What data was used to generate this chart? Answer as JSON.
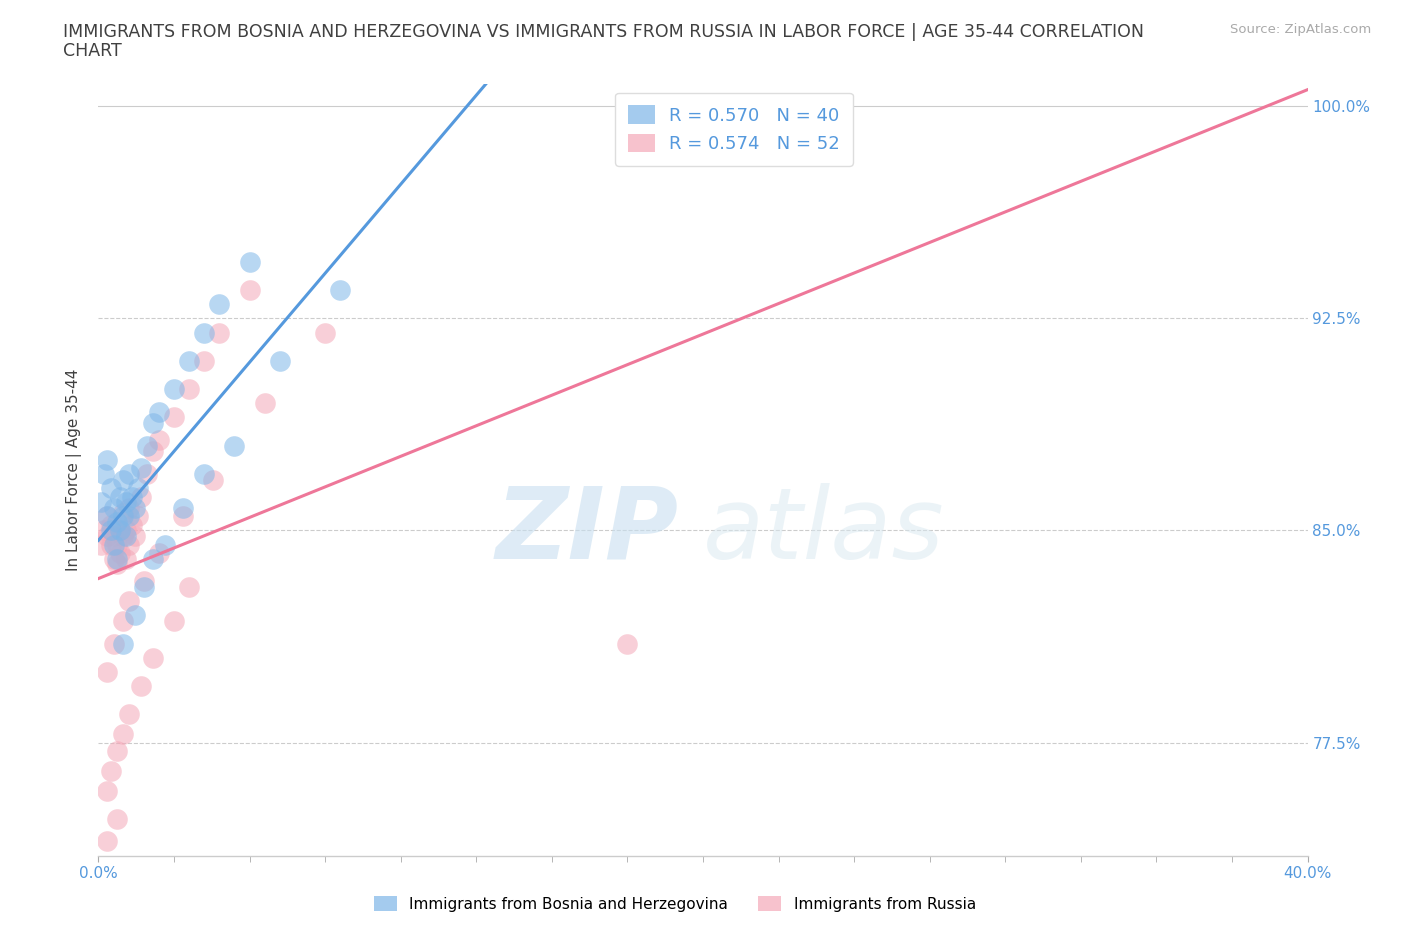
{
  "title_line1": "IMMIGRANTS FROM BOSNIA AND HERZEGOVINA VS IMMIGRANTS FROM RUSSIA IN LABOR FORCE | AGE 35-44 CORRELATION",
  "title_line2": "CHART",
  "source": "Source: ZipAtlas.com",
  "ylabel": "In Labor Force | Age 35-44",
  "legend_label_blue": "Immigrants from Bosnia and Herzegovina",
  "legend_label_pink": "Immigrants from Russia",
  "r_blue": 0.57,
  "n_blue": 40,
  "r_pink": 0.574,
  "n_pink": 52,
  "color_blue": "#7EB6E8",
  "color_pink": "#F4A8B8",
  "line_color_blue": "#5599DD",
  "line_color_pink": "#EE7799",
  "xlim": [
    0.0,
    0.4
  ],
  "ylim": [
    0.735,
    1.008
  ],
  "yticks": [
    0.775,
    0.85,
    0.925,
    1.0
  ],
  "ytick_labels": [
    "77.5%",
    "85.0%",
    "92.5%",
    "100.0%"
  ],
  "xticks_minor": [
    0.0,
    0.025,
    0.05,
    0.075,
    0.1,
    0.125,
    0.15,
    0.175,
    0.2,
    0.225,
    0.25,
    0.275,
    0.3,
    0.325,
    0.35,
    0.375,
    0.4
  ],
  "xticks_labeled": [
    0.0,
    0.4
  ],
  "xtick_labels": [
    "0.0%",
    "40.0%"
  ],
  "blue_x": [
    0.001,
    0.002,
    0.003,
    0.003,
    0.004,
    0.004,
    0.005,
    0.005,
    0.006,
    0.006,
    0.007,
    0.007,
    0.008,
    0.008,
    0.009,
    0.009,
    0.01,
    0.01,
    0.011,
    0.012,
    0.013,
    0.014,
    0.016,
    0.018,
    0.02,
    0.025,
    0.03,
    0.035,
    0.04,
    0.05,
    0.008,
    0.012,
    0.015,
    0.018,
    0.022,
    0.028,
    0.035,
    0.045,
    0.06,
    0.08
  ],
  "blue_y": [
    0.86,
    0.87,
    0.855,
    0.875,
    0.85,
    0.865,
    0.845,
    0.858,
    0.84,
    0.853,
    0.85,
    0.862,
    0.855,
    0.868,
    0.848,
    0.86,
    0.855,
    0.87,
    0.862,
    0.858,
    0.865,
    0.872,
    0.88,
    0.888,
    0.892,
    0.9,
    0.91,
    0.92,
    0.93,
    0.945,
    0.81,
    0.82,
    0.83,
    0.84,
    0.845,
    0.858,
    0.87,
    0.88,
    0.91,
    0.935
  ],
  "pink_x": [
    0.001,
    0.002,
    0.003,
    0.003,
    0.004,
    0.004,
    0.005,
    0.005,
    0.006,
    0.006,
    0.007,
    0.007,
    0.008,
    0.008,
    0.009,
    0.009,
    0.01,
    0.01,
    0.011,
    0.012,
    0.013,
    0.014,
    0.016,
    0.018,
    0.02,
    0.025,
    0.03,
    0.035,
    0.04,
    0.05,
    0.003,
    0.005,
    0.008,
    0.01,
    0.015,
    0.02,
    0.028,
    0.038,
    0.055,
    0.075,
    0.003,
    0.004,
    0.006,
    0.008,
    0.01,
    0.014,
    0.018,
    0.025,
    0.03,
    0.006,
    0.003,
    0.175
  ],
  "pink_y": [
    0.845,
    0.85,
    0.848,
    0.855,
    0.845,
    0.852,
    0.84,
    0.848,
    0.838,
    0.845,
    0.842,
    0.85,
    0.848,
    0.856,
    0.84,
    0.85,
    0.845,
    0.858,
    0.852,
    0.848,
    0.855,
    0.862,
    0.87,
    0.878,
    0.882,
    0.89,
    0.9,
    0.91,
    0.92,
    0.935,
    0.8,
    0.81,
    0.818,
    0.825,
    0.832,
    0.842,
    0.855,
    0.868,
    0.895,
    0.92,
    0.758,
    0.765,
    0.772,
    0.778,
    0.785,
    0.795,
    0.805,
    0.818,
    0.83,
    0.748,
    0.74,
    0.81
  ],
  "watermark_zip": "ZIP",
  "watermark_atlas": "atlas",
  "background_color": "#ffffff",
  "grid_color": "#cccccc",
  "title_color": "#404040",
  "axis_label_color": "#404040",
  "tick_label_color_left": "#888888",
  "tick_label_color_right": "#5599DD",
  "source_color": "#aaaaaa"
}
